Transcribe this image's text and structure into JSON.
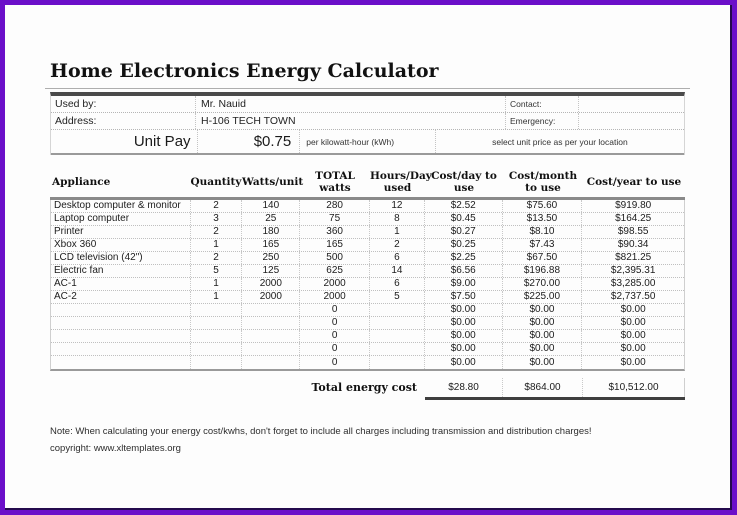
{
  "title": "Home Electronics Energy Calculator",
  "info": {
    "used_by_label": "Used by:",
    "used_by_value": "Mr. Nauid",
    "address_label": "Address:",
    "address_value": "H-106 TECH TOWN",
    "contact_label": "Contact:",
    "contact_value": "",
    "emergency_label": "Emergency:",
    "emergency_value": ""
  },
  "unit_pay": {
    "label": "Unit Pay",
    "value": "$0.75",
    "unit_note": "per kilowatt-hour (kWh)",
    "hint": "select unit price as per your location"
  },
  "table": {
    "headers": [
      "Appliance",
      "Quantity",
      "Watts/unit",
      "TOTAL watts",
      "Hours/Day used",
      "Cost/day to use",
      "Cost/month to use",
      "Cost/year to use"
    ],
    "rows": [
      [
        "Desktop computer & monitor",
        "2",
        "140",
        "280",
        "12",
        "$2.52",
        "$75.60",
        "$919.80"
      ],
      [
        "Laptop computer",
        "3",
        "25",
        "75",
        "8",
        "$0.45",
        "$13.50",
        "$164.25"
      ],
      [
        "Printer",
        "2",
        "180",
        "360",
        "1",
        "$0.27",
        "$8.10",
        "$98.55"
      ],
      [
        "Xbox 360",
        "1",
        "165",
        "165",
        "2",
        "$0.25",
        "$7.43",
        "$90.34"
      ],
      [
        "LCD television (42\")",
        "2",
        "250",
        "500",
        "6",
        "$2.25",
        "$67.50",
        "$821.25"
      ],
      [
        "Electric fan",
        "5",
        "125",
        "625",
        "14",
        "$6.56",
        "$196.88",
        "$2,395.31"
      ],
      [
        "AC-1",
        "1",
        "2000",
        "2000",
        "6",
        "$9.00",
        "$270.00",
        "$3,285.00"
      ],
      [
        "AC-2",
        "1",
        "2000",
        "2000",
        "5",
        "$7.50",
        "$225.00",
        "$2,737.50"
      ],
      [
        "",
        "",
        "",
        "0",
        "",
        "$0.00",
        "$0.00",
        "$0.00"
      ],
      [
        "",
        "",
        "",
        "0",
        "",
        "$0.00",
        "$0.00",
        "$0.00"
      ],
      [
        "",
        "",
        "",
        "0",
        "",
        "$0.00",
        "$0.00",
        "$0.00"
      ],
      [
        "",
        "",
        "",
        "0",
        "",
        "$0.00",
        "$0.00",
        "$0.00"
      ],
      [
        "",
        "",
        "",
        "0",
        "",
        "$0.00",
        "$0.00",
        "$0.00"
      ]
    ],
    "total": {
      "label": "Total energy cost",
      "day": "$28.80",
      "month": "$864.00",
      "year": "$10,512.00"
    }
  },
  "footer": {
    "note": "Note: When calculating your energy cost/kwhs, don't forget to include all charges including transmission and distribution charges!",
    "copyright": "copyright: www.xltemplates.org"
  },
  "colors": {
    "frame_border": "#6b0fc9",
    "heavy_bar": "#4a4a4a",
    "grid_dotted": "#c0c0c0",
    "text": "#1c1c1c",
    "background": "#fdfdfd"
  }
}
